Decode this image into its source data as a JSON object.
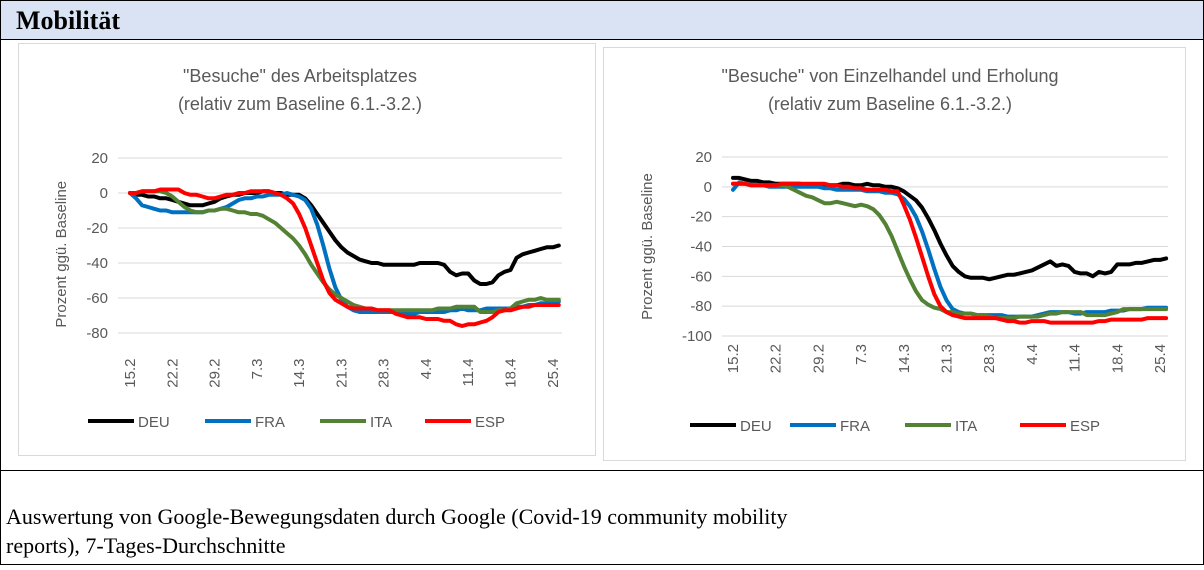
{
  "header": {
    "title": "Mobilität"
  },
  "footer": {
    "lines": [
      "Auswertung von Google-Bewegungsdaten durch Google (Covid-19 community mobility",
      "reports), 7-Tages-Durchschnitte"
    ]
  },
  "chart_data": [
    {
      "type": "line",
      "title": "\"Besuche\" des Arbeitsplatzes",
      "subtitle": "(relativ zum Baseline 6.1.-3.2.)",
      "y_label": "Prozent ggü. Baseline",
      "categories": [
        "15.2",
        null,
        null,
        null,
        null,
        null,
        null,
        "22.2",
        null,
        null,
        null,
        null,
        null,
        null,
        "29.2",
        null,
        null,
        null,
        null,
        null,
        null,
        "7.3",
        null,
        null,
        null,
        null,
        null,
        null,
        "14.3",
        null,
        null,
        null,
        null,
        null,
        null,
        "21.3",
        null,
        null,
        null,
        null,
        null,
        null,
        "28.3",
        null,
        null,
        null,
        null,
        null,
        null,
        "4.4",
        null,
        null,
        null,
        null,
        null,
        null,
        "11.4",
        null,
        null,
        null,
        null,
        null,
        null,
        "18.4",
        null,
        null,
        null,
        null,
        null,
        null,
        "25.4",
        null
      ],
      "ylim": [
        -90,
        20
      ],
      "yticks": [
        20,
        0,
        -20,
        -40,
        -60,
        -80
      ],
      "grid": true,
      "legend": "bottom",
      "series": [
        {
          "name": "DEU",
          "color": "#000000",
          "values": [
            0,
            -1,
            -1,
            -2,
            -2,
            -3,
            -3,
            -4,
            -5,
            -6,
            -7,
            -7,
            -7,
            -6,
            -5,
            -3,
            -2,
            -1,
            -1,
            0,
            0,
            0,
            1,
            1,
            0,
            0,
            -1,
            -1,
            -1,
            -3,
            -7,
            -12,
            -17,
            -22,
            -27,
            -31,
            -34,
            -36,
            -38,
            -39,
            -40,
            -40,
            -41,
            -41,
            -41,
            -41,
            -41,
            -41,
            -40,
            -40,
            -40,
            -40,
            -41,
            -45,
            -47,
            -46,
            -46,
            -50,
            -52,
            -52,
            -51,
            -47,
            -45,
            -44,
            -37,
            -35,
            -34,
            -33,
            -32,
            -31,
            -31,
            -30
          ]
        },
        {
          "name": "FRA",
          "color": "#0070c0",
          "values": [
            0,
            -3,
            -7,
            -8,
            -9,
            -10,
            -10,
            -11,
            -11,
            -11,
            -11,
            -11,
            -11,
            -10,
            -10,
            -9,
            -8,
            -6,
            -4,
            -3,
            -3,
            -2,
            -2,
            -1,
            -1,
            -1,
            0,
            -1,
            -2,
            -4,
            -9,
            -18,
            -30,
            -43,
            -54,
            -61,
            -65,
            -67,
            -68,
            -68,
            -68,
            -68,
            -68,
            -68,
            -68,
            -69,
            -69,
            -69,
            -68,
            -68,
            -68,
            -68,
            -68,
            -67,
            -67,
            -66,
            -67,
            -67,
            -67,
            -66,
            -66,
            -66,
            -66,
            -66,
            -65,
            -65,
            -64,
            -64,
            -63,
            -63,
            -63,
            -62
          ]
        },
        {
          "name": "ITA",
          "color": "#548235",
          "values": [
            0,
            0,
            1,
            1,
            1,
            1,
            0,
            -2,
            -5,
            -8,
            -10,
            -11,
            -11,
            -10,
            -10,
            -9,
            -9,
            -10,
            -11,
            -11,
            -12,
            -12,
            -13,
            -15,
            -17,
            -20,
            -23,
            -26,
            -30,
            -35,
            -41,
            -46,
            -51,
            -55,
            -58,
            -60,
            -62,
            -64,
            -65,
            -66,
            -66,
            -67,
            -67,
            -67,
            -67,
            -67,
            -67,
            -67,
            -67,
            -67,
            -67,
            -66,
            -66,
            -66,
            -65,
            -65,
            -65,
            -65,
            -68,
            -68,
            -68,
            -67,
            -67,
            -66,
            -63,
            -62,
            -61,
            -61,
            -60,
            -61,
            -61,
            -61
          ]
        },
        {
          "name": "ESP",
          "color": "#ff0000",
          "values": [
            0,
            0,
            1,
            1,
            1,
            2,
            2,
            2,
            2,
            0,
            -1,
            -1,
            -2,
            -3,
            -3,
            -2,
            -1,
            -1,
            0,
            0,
            1,
            1,
            1,
            1,
            0,
            -1,
            -3,
            -6,
            -12,
            -20,
            -30,
            -40,
            -50,
            -57,
            -61,
            -63,
            -65,
            -66,
            -66,
            -66,
            -66,
            -67,
            -67,
            -67,
            -69,
            -70,
            -71,
            -71,
            -71,
            -72,
            -72,
            -72,
            -73,
            -73,
            -75,
            -76,
            -75,
            -75,
            -74,
            -73,
            -71,
            -68,
            -67,
            -67,
            -66,
            -65,
            -65,
            -64,
            -64,
            -64,
            -64,
            -64
          ]
        }
      ]
    },
    {
      "type": "line",
      "title": "\"Besuche\" von Einzelhandel und Erholung",
      "subtitle": "(relativ zum Baseline 6.1.-3.2.)",
      "y_label": "Prozent ggü. Baseline",
      "categories": [
        "15.2",
        null,
        null,
        null,
        null,
        null,
        null,
        "22.2",
        null,
        null,
        null,
        null,
        null,
        null,
        "29.2",
        null,
        null,
        null,
        null,
        null,
        null,
        "7.3",
        null,
        null,
        null,
        null,
        null,
        null,
        "14.3",
        null,
        null,
        null,
        null,
        null,
        null,
        "21.3",
        null,
        null,
        null,
        null,
        null,
        null,
        "28.3",
        null,
        null,
        null,
        null,
        null,
        null,
        "4.4",
        null,
        null,
        null,
        null,
        null,
        null,
        "11.4",
        null,
        null,
        null,
        null,
        null,
        null,
        "18.4",
        null,
        null,
        null,
        null,
        null,
        null,
        "25.4",
        null
      ],
      "ylim": [
        -100,
        20
      ],
      "yticks": [
        20,
        0,
        -20,
        -40,
        -60,
        -80,
        -100
      ],
      "grid": true,
      "legend": "bottom",
      "series": [
        {
          "name": "DEU",
          "color": "#000000",
          "values": [
            6,
            6,
            5,
            4,
            4,
            3,
            3,
            2,
            2,
            2,
            2,
            2,
            1,
            1,
            1,
            1,
            1,
            1,
            2,
            2,
            1,
            1,
            2,
            1,
            1,
            0,
            0,
            -1,
            -3,
            -6,
            -9,
            -14,
            -21,
            -29,
            -38,
            -46,
            -53,
            -57,
            -60,
            -61,
            -61,
            -61,
            -62,
            -61,
            -60,
            -59,
            -59,
            -58,
            -57,
            -56,
            -54,
            -52,
            -50,
            -53,
            -52,
            -53,
            -57,
            -58,
            -58,
            -60,
            -57,
            -58,
            -57,
            -52,
            -52,
            -52,
            -51,
            -51,
            -50,
            -49,
            -49,
            -48
          ]
        },
        {
          "name": "FRA",
          "color": "#0070c0",
          "values": [
            -2,
            3,
            2,
            1,
            1,
            1,
            0,
            0,
            0,
            0,
            0,
            0,
            0,
            0,
            0,
            -1,
            -1,
            -2,
            -2,
            -2,
            -2,
            -2,
            -3,
            -3,
            -3,
            -4,
            -4,
            -5,
            -8,
            -13,
            -20,
            -30,
            -42,
            -55,
            -67,
            -76,
            -82,
            -84,
            -85,
            -85,
            -86,
            -86,
            -86,
            -86,
            -86,
            -87,
            -87,
            -87,
            -87,
            -87,
            -86,
            -85,
            -84,
            -84,
            -84,
            -84,
            -85,
            -85,
            -84,
            -84,
            -84,
            -84,
            -83,
            -83,
            -83,
            -82,
            -82,
            -82,
            -81,
            -81,
            -81,
            -81
          ]
        },
        {
          "name": "ITA",
          "color": "#548235",
          "values": [
            2,
            2,
            2,
            1,
            1,
            1,
            1,
            1,
            1,
            0,
            -2,
            -4,
            -6,
            -7,
            -9,
            -11,
            -11,
            -10,
            -11,
            -12,
            -13,
            -12,
            -13,
            -15,
            -19,
            -25,
            -33,
            -43,
            -53,
            -62,
            -70,
            -76,
            -79,
            -81,
            -82,
            -84,
            -84,
            -85,
            -85,
            -85,
            -86,
            -86,
            -87,
            -88,
            -88,
            -88,
            -88,
            -87,
            -87,
            -87,
            -87,
            -86,
            -85,
            -85,
            -84,
            -84,
            -84,
            -84,
            -86,
            -86,
            -86,
            -86,
            -85,
            -84,
            -82,
            -82,
            -82,
            -82,
            -82,
            -82,
            -82,
            -82
          ]
        },
        {
          "name": "ESP",
          "color": "#ff0000",
          "values": [
            2,
            2,
            2,
            1,
            1,
            1,
            1,
            1,
            2,
            2,
            2,
            2,
            2,
            2,
            2,
            2,
            1,
            1,
            0,
            0,
            -1,
            -1,
            -2,
            -2,
            -2,
            -2,
            -3,
            -3,
            -12,
            -22,
            -34,
            -47,
            -60,
            -72,
            -80,
            -84,
            -86,
            -87,
            -88,
            -88,
            -88,
            -88,
            -88,
            -88,
            -89,
            -90,
            -90,
            -91,
            -91,
            -90,
            -90,
            -90,
            -91,
            -91,
            -91,
            -91,
            -91,
            -91,
            -91,
            -91,
            -90,
            -90,
            -89,
            -89,
            -89,
            -89,
            -89,
            -89,
            -88,
            -88,
            -88,
            -88
          ]
        }
      ]
    }
  ]
}
